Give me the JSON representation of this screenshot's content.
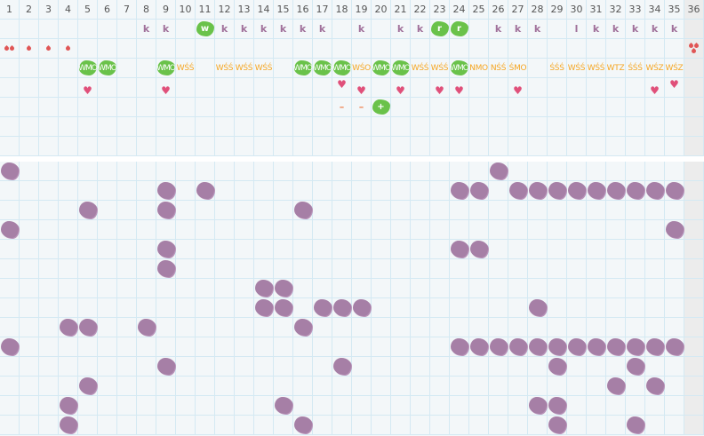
{
  "columns": [
    "1",
    "2",
    "3",
    "4",
    "5",
    "6",
    "7",
    "8",
    "9",
    "10",
    "11",
    "12",
    "13",
    "14",
    "15",
    "16",
    "17",
    "18",
    "19",
    "20",
    "21",
    "22",
    "23",
    "24",
    "25",
    "26",
    "27",
    "28",
    "29",
    "30",
    "31",
    "32",
    "33",
    "34",
    "35",
    "36"
  ],
  "colors": {
    "green_badge": "#6ac24a",
    "purple_blob": "#a67fa6",
    "orange_text": "#f5a623",
    "heart": "#e0507a",
    "drop": "#e05555",
    "k_text": "#a0709a"
  },
  "top_rows": [
    [
      {
        "col": 8,
        "type": "k",
        "text": "k"
      },
      {
        "col": 9,
        "type": "k",
        "text": "k"
      },
      {
        "col": 11,
        "type": "green",
        "text": "w"
      },
      {
        "col": 12,
        "type": "k",
        "text": "k"
      },
      {
        "col": 13,
        "type": "k",
        "text": "k"
      },
      {
        "col": 14,
        "type": "k",
        "text": "k"
      },
      {
        "col": 15,
        "type": "k",
        "text": "k"
      },
      {
        "col": 16,
        "type": "k",
        "text": "k"
      },
      {
        "col": 17,
        "type": "k",
        "text": "k"
      },
      {
        "col": 19,
        "type": "k",
        "text": "k"
      },
      {
        "col": 21,
        "type": "k",
        "text": "k"
      },
      {
        "col": 22,
        "type": "k",
        "text": "k"
      },
      {
        "col": 23,
        "type": "green",
        "text": "r"
      },
      {
        "col": 24,
        "type": "green",
        "text": "r"
      },
      {
        "col": 26,
        "type": "k",
        "text": "k"
      },
      {
        "col": 27,
        "type": "k",
        "text": "k"
      },
      {
        "col": 28,
        "type": "k",
        "text": "k"
      },
      {
        "col": 30,
        "type": "k",
        "text": "l"
      },
      {
        "col": 31,
        "type": "k",
        "text": "k"
      },
      {
        "col": 32,
        "type": "k",
        "text": "k"
      },
      {
        "col": 33,
        "type": "k",
        "text": "k"
      },
      {
        "col": 34,
        "type": "k",
        "text": "k"
      },
      {
        "col": 35,
        "type": "k",
        "text": "k"
      }
    ],
    [
      {
        "col": 1,
        "type": "drops",
        "count": 2
      },
      {
        "col": 2,
        "type": "drops",
        "count": 1
      },
      {
        "col": 3,
        "type": "drops",
        "count": 1
      },
      {
        "col": 4,
        "type": "drops",
        "count": 1
      },
      {
        "col": 36,
        "type": "drops",
        "count": 3
      }
    ],
    [
      {
        "col": 5,
        "type": "greenwide",
        "text": "WMO"
      },
      {
        "col": 6,
        "type": "greenwide",
        "text": "WMO"
      },
      {
        "col": 9,
        "type": "greenwide",
        "text": "WMO"
      },
      {
        "col": 10,
        "type": "orange",
        "text": "WŚŚ"
      },
      {
        "col": 12,
        "type": "orange",
        "text": "WŚŚ"
      },
      {
        "col": 13,
        "type": "orange",
        "text": "WŚŚ"
      },
      {
        "col": 14,
        "type": "orange",
        "text": "WŚŚ"
      },
      {
        "col": 16,
        "type": "greenwide",
        "text": "WMO"
      },
      {
        "col": 17,
        "type": "greenwide",
        "text": "WMO"
      },
      {
        "col": 18,
        "type": "greenwide",
        "text": "WMO"
      },
      {
        "col": 19,
        "type": "orange",
        "text": "WŚO"
      },
      {
        "col": 20,
        "type": "greenwide",
        "text": "WMO"
      },
      {
        "col": 21,
        "type": "greenwide",
        "text": "WMO"
      },
      {
        "col": 22,
        "type": "orange",
        "text": "WŚŚ"
      },
      {
        "col": 23,
        "type": "orange",
        "text": "WŚŚ"
      },
      {
        "col": 24,
        "type": "greenwide",
        "text": "WMO"
      },
      {
        "col": 25,
        "type": "orange",
        "text": "NMO"
      },
      {
        "col": 26,
        "type": "orange",
        "text": "NŚŚ"
      },
      {
        "col": 27,
        "type": "orange",
        "text": "ŚMO"
      },
      {
        "col": 29,
        "type": "orange",
        "text": "ŚŚŚ"
      },
      {
        "col": 30,
        "type": "orange",
        "text": "WŚŚ"
      },
      {
        "col": 31,
        "type": "orange",
        "text": "WŚŚ"
      },
      {
        "col": 32,
        "type": "orange",
        "text": "WTZ"
      },
      {
        "col": 33,
        "type": "orange",
        "text": "ŚŚŚ"
      },
      {
        "col": 34,
        "type": "orange",
        "text": "WŚZ"
      },
      {
        "col": 35,
        "type": "orange",
        "text": "WŚZ"
      }
    ],
    [
      {
        "col": 5,
        "type": "heart",
        "text": "♥"
      },
      {
        "col": 9,
        "type": "heart",
        "text": "♥"
      },
      {
        "col": 18,
        "type": "heartup",
        "text": "♥"
      },
      {
        "col": 19,
        "type": "heart",
        "text": "♥"
      },
      {
        "col": 21,
        "type": "heart",
        "text": "♥"
      },
      {
        "col": 23,
        "type": "heart",
        "text": "♥"
      },
      {
        "col": 24,
        "type": "heart",
        "text": "♥"
      },
      {
        "col": 27,
        "type": "heart",
        "text": "♥"
      },
      {
        "col": 34,
        "type": "heart",
        "text": "♥"
      },
      {
        "col": 35,
        "type": "heartup",
        "text": "♥"
      }
    ],
    [
      {
        "col": 18,
        "type": "dash",
        "text": "–"
      },
      {
        "col": 19,
        "type": "dash",
        "text": "–"
      },
      {
        "col": 20,
        "type": "green",
        "text": "+"
      }
    ],
    [],
    []
  ],
  "bottom_rows": [
    [
      1,
      26
    ],
    [
      9,
      11,
      24,
      25,
      27,
      28,
      29,
      30,
      31,
      32,
      33,
      34,
      35
    ],
    [
      5,
      9,
      16
    ],
    [
      1,
      35
    ],
    [
      9,
      24,
      25
    ],
    [
      9
    ],
    [
      14,
      15
    ],
    [
      14,
      15,
      17,
      18,
      19,
      28
    ],
    [
      4,
      5,
      8,
      16
    ],
    [
      1,
      24,
      25,
      26,
      27,
      28,
      29,
      30,
      31,
      32,
      33,
      34,
      35
    ],
    [
      9,
      18,
      29,
      33
    ],
    [
      5,
      32,
      34
    ],
    [
      4,
      15,
      28,
      29
    ],
    [
      4,
      16,
      29,
      33
    ]
  ]
}
